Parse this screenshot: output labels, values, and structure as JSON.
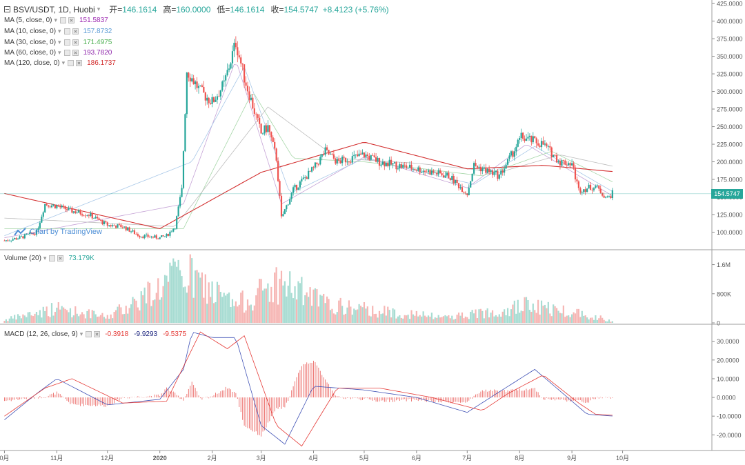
{
  "header": {
    "symbol": "BSV/USDT, 1D, Huobi",
    "open_label": "开=",
    "open": "146.1614",
    "high_label": "高=",
    "high": "160.0000",
    "low_label": "低=",
    "low": "146.1614",
    "close_label": "收=",
    "close": "154.5747",
    "change": "+8.4123 (+5.76%)"
  },
  "indicators": {
    "ma": [
      {
        "label": "MA (5, close, 0)",
        "value": "151.5837",
        "color": "#9c27b0"
      },
      {
        "label": "MA (10, close, 0)",
        "value": "157.8732",
        "color": "#5b9bd5"
      },
      {
        "label": "MA (30, close, 0)",
        "value": "171.4975",
        "color": "#4caf50"
      },
      {
        "label": "MA (60, close, 0)",
        "value": "193.7820",
        "color": "#8e24aa"
      },
      {
        "label": "MA (120, close, 0)",
        "value": "186.1737",
        "color": "#d32f2f"
      }
    ],
    "volume": {
      "label": "Volume (20)",
      "value": "73.179K"
    },
    "macd": {
      "label": "MACD (12, 26, close, 9)",
      "hist": "-0.3918",
      "macd": "-9.9293",
      "signal": "-9.5375"
    }
  },
  "watermark": "Chart by TradingView",
  "price_tag": "154.5747",
  "colors": {
    "up": "#26a69a",
    "down": "#ef5350",
    "vol_up": "#a7dcd2",
    "vol_down": "#f6b6b4",
    "macd_line": "#3f51b5",
    "signal_line": "#e53935",
    "grid": "#e6e6e6"
  },
  "chart_data": {
    "type": "candlestick",
    "y_price_ticks": [
      "425.0000",
      "400.0000",
      "375.0000",
      "350.0000",
      "325.0000",
      "300.0000",
      "275.0000",
      "250.0000",
      "225.0000",
      "200.0000",
      "175.0000",
      "150.0000",
      "125.0000",
      "100.0000"
    ],
    "y_volume_ticks": [
      "1.6M",
      "800K",
      "0"
    ],
    "y_macd_ticks": [
      "30.0000",
      "20.0000",
      "10.0000",
      "0.0000",
      "-10.0000",
      "-20.0000"
    ],
    "x_ticks": [
      "0月",
      "11月",
      "12月",
      "2020",
      "2月",
      "3月",
      "4月",
      "5月",
      "6月",
      "7月",
      "8月",
      "9月",
      "10月"
    ],
    "ylim_price": [
      75,
      430
    ],
    "price_path": [
      [
        "2019-10-01",
        88
      ],
      [
        "2019-10-10",
        92
      ],
      [
        "2019-10-20",
        100
      ],
      [
        "2019-10-25",
        140
      ],
      [
        "2019-11-01",
        137
      ],
      [
        "2019-11-10",
        130
      ],
      [
        "2019-11-20",
        125
      ],
      [
        "2019-12-01",
        110
      ],
      [
        "2019-12-10",
        108
      ],
      [
        "2019-12-20",
        95
      ],
      [
        "2020-01-01",
        92
      ],
      [
        "2020-01-05",
        95
      ],
      [
        "2020-01-10",
        108
      ],
      [
        "2020-01-14",
        160
      ],
      [
        "2020-01-17",
        330
      ],
      [
        "2020-01-25",
        300
      ],
      [
        "2020-02-01",
        285
      ],
      [
        "2020-02-08",
        310
      ],
      [
        "2020-02-15",
        370
      ],
      [
        "2020-02-20",
        320
      ],
      [
        "2020-03-01",
        240
      ],
      [
        "2020-03-05",
        250
      ],
      [
        "2020-03-10",
        205
      ],
      [
        "2020-03-13",
        120
      ],
      [
        "2020-03-20",
        160
      ],
      [
        "2020-04-01",
        190
      ],
      [
        "2020-04-08",
        215
      ],
      [
        "2020-04-15",
        200
      ],
      [
        "2020-05-01",
        210
      ],
      [
        "2020-05-10",
        200
      ],
      [
        "2020-05-20",
        195
      ],
      [
        "2020-06-01",
        190
      ],
      [
        "2020-06-20",
        180
      ],
      [
        "2020-07-01",
        155
      ],
      [
        "2020-07-05",
        195
      ],
      [
        "2020-07-20",
        180
      ],
      [
        "2020-07-25",
        200
      ],
      [
        "2020-08-02",
        235
      ],
      [
        "2020-08-15",
        225
      ],
      [
        "2020-08-25",
        200
      ],
      [
        "2020-09-01",
        198
      ],
      [
        "2020-09-05",
        160
      ],
      [
        "2020-09-15",
        165
      ],
      [
        "2020-09-22",
        148
      ],
      [
        "2020-09-25",
        155
      ]
    ],
    "ma_paths": {
      "ma5": [
        [
          "2019-10-01",
          92
        ],
        [
          "2020-01-15",
          140
        ],
        [
          "2020-02-15",
          345
        ],
        [
          "2020-03-13",
          140
        ],
        [
          "2020-05-01",
          207
        ],
        [
          "2020-07-01",
          163
        ],
        [
          "2020-08-05",
          225
        ],
        [
          "2020-09-25",
          151.58
        ]
      ],
      "ma10": [
        [
          "2019-10-01",
          95
        ],
        [
          "2020-01-20",
          200
        ],
        [
          "2020-02-20",
          335
        ],
        [
          "2020-03-18",
          155
        ],
        [
          "2020-05-01",
          205
        ],
        [
          "2020-07-05",
          168
        ],
        [
          "2020-08-10",
          222
        ],
        [
          "2020-09-25",
          157.87
        ]
      ],
      "ma30": [
        [
          "2019-10-01",
          105
        ],
        [
          "2020-01-15",
          105
        ],
        [
          "2020-02-25",
          300
        ],
        [
          "2020-03-20",
          205
        ],
        [
          "2020-05-01",
          200
        ],
        [
          "2020-07-10",
          180
        ],
        [
          "2020-08-20",
          215
        ],
        [
          "2020-09-25",
          171.5
        ]
      ],
      "ma60": [
        [
          "2019-10-01",
          120
        ],
        [
          "2020-01-10",
          108
        ],
        [
          "2020-03-05",
          278
        ],
        [
          "2020-04-15",
          205
        ],
        [
          "2020-06-01",
          198
        ],
        [
          "2020-07-20",
          185
        ],
        [
          "2020-08-25",
          210
        ],
        [
          "2020-09-25",
          193.78
        ]
      ],
      "ma120": [
        [
          "2019-10-01",
          155
        ],
        [
          "2020-01-01",
          105
        ],
        [
          "2020-03-01",
          185
        ],
        [
          "2020-05-01",
          228
        ],
        [
          "2020-07-01",
          190
        ],
        [
          "2020-08-15",
          195
        ],
        [
          "2020-09-25",
          186.17
        ]
      ]
    },
    "volume_path": [
      [
        "2019-10-01",
        0.1
      ],
      [
        "2019-11-01",
        0.5
      ],
      [
        "2019-12-01",
        0.2
      ],
      [
        "2020-01-15",
        1.7
      ],
      [
        "2020-02-15",
        0.6
      ],
      [
        "2020-03-12",
        1.4
      ],
      [
        "2020-04-10",
        0.6
      ],
      [
        "2020-05-10",
        0.4
      ],
      [
        "2020-06-15",
        0.2
      ],
      [
        "2020-07-05",
        0.3
      ],
      [
        "2020-08-05",
        0.6
      ],
      [
        "2020-09-05",
        0.35
      ],
      [
        "2020-09-25",
        0.07
      ]
    ],
    "macd_path": [
      [
        "2019-10-01",
        -12
      ],
      [
        "2019-10-20",
        2
      ],
      [
        "2019-11-01",
        10
      ],
      [
        "2019-12-01",
        -4
      ],
      [
        "2020-01-01",
        -1
      ],
      [
        "2020-01-15",
        15
      ],
      [
        "2020-01-20",
        35
      ],
      [
        "2020-02-01",
        32
      ],
      [
        "2020-02-15",
        32
      ],
      [
        "2020-03-01",
        -15
      ],
      [
        "2020-03-15",
        -25
      ],
      [
        "2020-04-01",
        6
      ],
      [
        "2020-05-01",
        4
      ],
      [
        "2020-06-01",
        0
      ],
      [
        "2020-07-01",
        -8
      ],
      [
        "2020-07-20",
        3
      ],
      [
        "2020-08-10",
        15
      ],
      [
        "2020-09-01",
        -2
      ],
      [
        "2020-09-10",
        -9
      ],
      [
        "2020-09-25",
        -9.93
      ]
    ],
    "signal_path": [
      [
        "2019-10-01",
        -10
      ],
      [
        "2019-10-25",
        5
      ],
      [
        "2019-11-10",
        10
      ],
      [
        "2019-12-10",
        -3
      ],
      [
        "2020-01-05",
        -2
      ],
      [
        "2020-01-25",
        35
      ],
      [
        "2020-02-10",
        26
      ],
      [
        "2020-02-20",
        33
      ],
      [
        "2020-03-10",
        -15
      ],
      [
        "2020-03-25",
        -26
      ],
      [
        "2020-04-15",
        5
      ],
      [
        "2020-05-10",
        5
      ],
      [
        "2020-06-10",
        0
      ],
      [
        "2020-07-10",
        -7
      ],
      [
        "2020-07-25",
        2
      ],
      [
        "2020-08-15",
        12
      ],
      [
        "2020-09-05",
        -3
      ],
      [
        "2020-09-15",
        -9
      ],
      [
        "2020-09-25",
        -9.54
      ]
    ],
    "last_close": 154.5747
  }
}
